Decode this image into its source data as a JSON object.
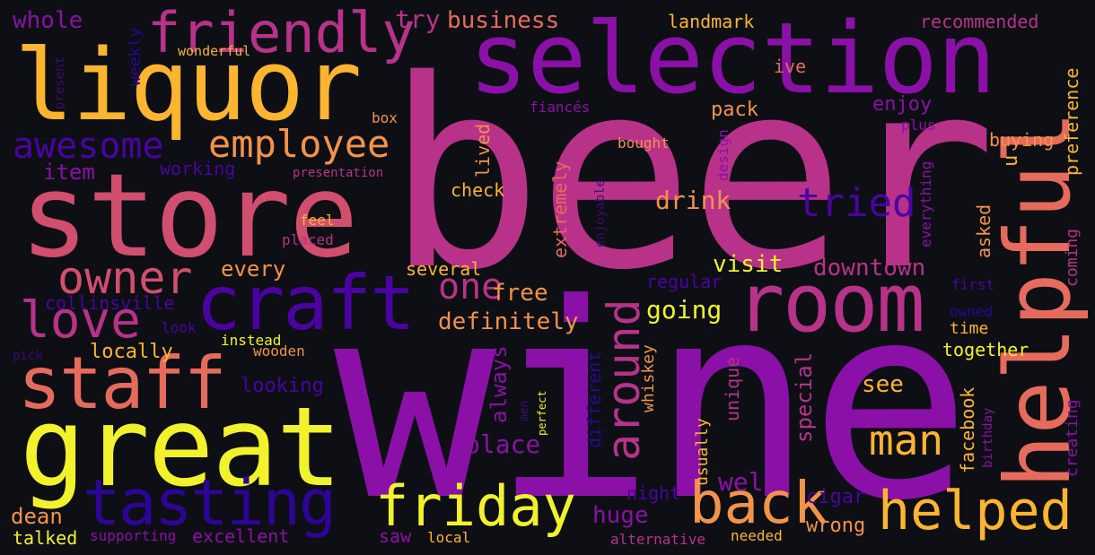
{
  "palette": {
    "background": "#0d0f14",
    "purple": "#8b10a7",
    "magenta": "#b83289",
    "pink": "#d14e6f",
    "salmon": "#e66b5c",
    "orange": "#f2934a",
    "amber": "#fdb42f",
    "yellow": "#f2f22c",
    "indigo": "#4a03a1",
    "deep_indigo": "#2c0595",
    "dark_purple": "#3d0a72"
  },
  "words": [
    "beer",
    "wine",
    "selection",
    "store",
    "liquor",
    "great",
    "helpful",
    "room",
    "craft",
    "tasting",
    "friendly",
    "staff",
    "friday",
    "helped",
    "owner",
    "back",
    "employee",
    "love",
    "awesome",
    "tried",
    "man",
    "around",
    "one",
    "whole",
    "business",
    "try",
    "landmark",
    "recommended",
    "wonderful",
    "weekly",
    "present",
    "ive",
    "box",
    "fiancés",
    "pack",
    "enjoy",
    "plus",
    "preference",
    "bought",
    "design",
    "presentation",
    "item",
    "working",
    "buying",
    "lived",
    "extremely",
    "everything",
    "check",
    "drink",
    "feel",
    "enjoyable",
    "u",
    "placed",
    "asked",
    "every",
    "free",
    "visit",
    "downtown",
    "several",
    "collinsville",
    "regular",
    "first",
    "going",
    "owned",
    "look",
    "definitely",
    "time",
    "instead",
    "locally",
    "pick",
    "wooden",
    "always",
    "special",
    "together",
    "coming",
    "see",
    "looking",
    "different",
    "whiskey",
    "unique",
    "facebook",
    "perfect",
    "birthday",
    "men",
    "usually",
    "creating",
    "place",
    "well",
    "night",
    "cigar",
    "dean",
    "huge",
    "talked",
    "supporting",
    "excellent",
    "saw",
    "local",
    "alternative",
    "needed",
    "wrong"
  ]
}
